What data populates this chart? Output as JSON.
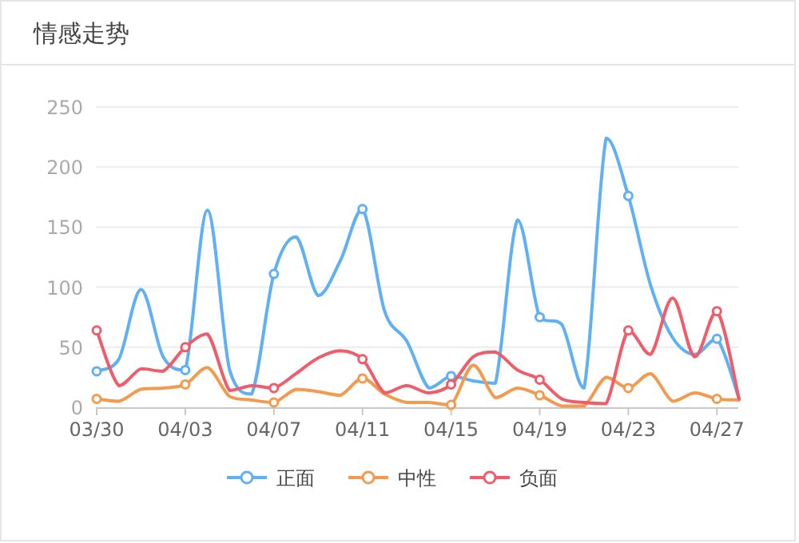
{
  "chart_data": {
    "type": "line",
    "title": "情感走势",
    "categories": [
      "03/30",
      null,
      null,
      null,
      "04/03",
      null,
      null,
      null,
      "04/07",
      null,
      null,
      null,
      "04/11",
      null,
      null,
      null,
      "04/15",
      null,
      null,
      null,
      "04/19",
      null,
      null,
      null,
      "04/23",
      null,
      null,
      null,
      "04/27",
      null
    ],
    "series": [
      {
        "name": "正面",
        "color": "#5fb0f4",
        "values": [
          30,
          40,
          98,
          42,
          31,
          164,
          31,
          11,
          111,
          142,
          93,
          122,
          165,
          80,
          55,
          16,
          26,
          22,
          20,
          156,
          75,
          69,
          16,
          224,
          176,
          102,
          58,
          44,
          57,
          7
        ]
      },
      {
        "name": "中性",
        "color": "#f29b4f",
        "values": [
          7,
          5,
          15,
          16,
          19,
          33,
          9,
          6,
          4,
          15,
          13,
          10,
          24,
          11,
          4,
          4,
          2,
          35,
          8,
          16,
          10,
          1,
          1,
          25,
          16,
          28,
          5,
          12,
          7,
          6
        ]
      },
      {
        "name": "负面",
        "color": "#ef5d6b",
        "values": [
          64,
          18,
          32,
          30,
          50,
          61,
          14,
          18,
          16,
          28,
          41,
          47,
          40,
          12,
          18,
          12,
          19,
          42,
          46,
          31,
          23,
          7,
          4,
          3,
          64,
          44,
          91,
          42,
          80,
          7
        ]
      }
    ],
    "ylim": [
      0,
      250
    ],
    "yticks": [
      0,
      50,
      100,
      150,
      200,
      250
    ],
    "grid": "y",
    "legend": "bottom",
    "line_style": "solid"
  }
}
